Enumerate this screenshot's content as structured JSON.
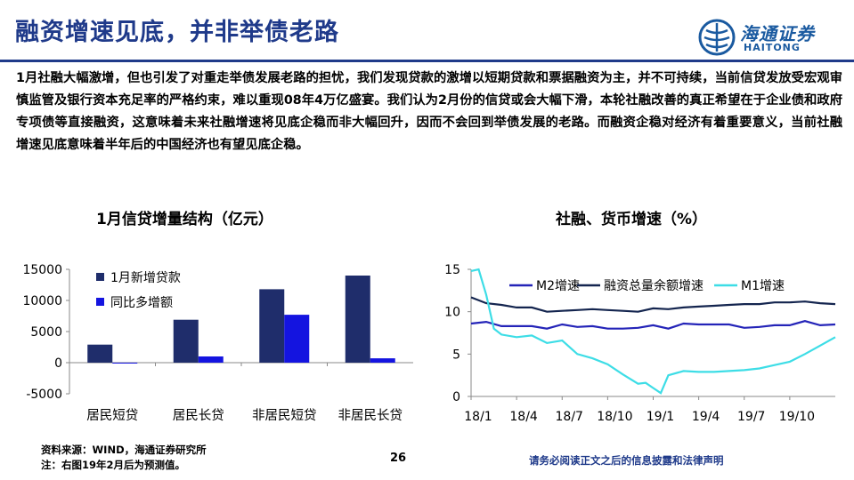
{
  "header": {
    "title": "融资增速见底，并非举债老路",
    "logo_cn": "海通证券",
    "logo_en": "HAITONG",
    "accent_color": "#1f3a8a"
  },
  "body_text": "1月社融大幅激增，但也引发了对重走举债发展老路的担忧，我们发现贷款的激增以短期贷款和票据融资为主，并不可持续，当前信贷发放受宏观审慎监管及银行资本充足率的严格约束，难以重现08年4万亿盛宴。我们认为2月份的信贷或会大幅下滑，本轮社融改善的真正希望在于企业债和政府专项债等直接融资，这意味着未来社融增速将见底企稳而非大幅回升，因而不会回到举债发展的老路。而融资企稳对经济有着重要意义，当前社融增速见底意味着半年后的中国经济也有望见底企稳。",
  "chart_data": [
    {
      "type": "bar",
      "title": "1月信贷增量结构（亿元）",
      "categories": [
        "居民短贷",
        "居民长贷",
        "非居民短贷",
        "非居民长贷"
      ],
      "series": [
        {
          "name": "1月新增贷款",
          "color": "#1f2d6b",
          "values": [
            2900,
            6900,
            11800,
            14000
          ]
        },
        {
          "name": "同比多增额",
          "color": "#1414e0",
          "values": [
            -100,
            1000,
            7700,
            700
          ]
        }
      ],
      "ylim": [
        -5000,
        15000
      ],
      "yticks": [
        "15000",
        "10000",
        "5000",
        "0",
        "-5000"
      ],
      "ytick_values": [
        15000,
        10000,
        5000,
        0,
        -5000
      ],
      "legend_position": "top-right",
      "grid": false
    },
    {
      "type": "line",
      "title": "社融、货币增速（%）",
      "x_tick_labels": [
        "18/1",
        "18/4",
        "18/7",
        "18/10",
        "19/1",
        "19/4",
        "19/7",
        "19/10"
      ],
      "x_tick_months": [
        0,
        3,
        6,
        9,
        12,
        15,
        18,
        21
      ],
      "x_range_months": [
        0,
        24
      ],
      "ylim": [
        0,
        15
      ],
      "yticks": [
        "15",
        "10",
        "5",
        "0"
      ],
      "ytick_values": [
        15,
        10,
        5,
        0
      ],
      "legend_position": "top",
      "grid": false,
      "series": [
        {
          "name": "M2增速",
          "color": "#2424b8",
          "points": [
            [
              0,
              8.6
            ],
            [
              1,
              8.8
            ],
            [
              2,
              8.3
            ],
            [
              3,
              8.3
            ],
            [
              4,
              8.3
            ],
            [
              5,
              8.0
            ],
            [
              6,
              8.5
            ],
            [
              7,
              8.2
            ],
            [
              8,
              8.3
            ],
            [
              9,
              8.0
            ],
            [
              10,
              8.0
            ],
            [
              11,
              8.1
            ],
            [
              12,
              8.4
            ],
            [
              13,
              8.0
            ],
            [
              14,
              8.6
            ],
            [
              15,
              8.5
            ],
            [
              16,
              8.5
            ],
            [
              17,
              8.5
            ],
            [
              18,
              8.1
            ],
            [
              19,
              8.2
            ],
            [
              20,
              8.4
            ],
            [
              21,
              8.4
            ],
            [
              22,
              8.9
            ],
            [
              23,
              8.4
            ],
            [
              24,
              8.5
            ]
          ]
        },
        {
          "name": "融资总量余额增速",
          "color": "#14254f",
          "points": [
            [
              0,
              11.7
            ],
            [
              1,
              11.0
            ],
            [
              2,
              10.8
            ],
            [
              3,
              10.5
            ],
            [
              4,
              10.5
            ],
            [
              5,
              10.0
            ],
            [
              6,
              10.1
            ],
            [
              7,
              10.2
            ],
            [
              8,
              10.3
            ],
            [
              9,
              10.2
            ],
            [
              10,
              10.1
            ],
            [
              11,
              10.0
            ],
            [
              12,
              10.4
            ],
            [
              13,
              10.3
            ],
            [
              14,
              10.5
            ],
            [
              15,
              10.6
            ],
            [
              16,
              10.7
            ],
            [
              17,
              10.8
            ],
            [
              18,
              10.9
            ],
            [
              19,
              10.9
            ],
            [
              20,
              11.1
            ],
            [
              21,
              11.1
            ],
            [
              22,
              11.2
            ],
            [
              23,
              11.0
            ],
            [
              24,
              10.9
            ]
          ]
        },
        {
          "name": "M1增速",
          "color": "#3ddde6",
          "points": [
            [
              0,
              14.8
            ],
            [
              0.5,
              15.0
            ],
            [
              1,
              12.0
            ],
            [
              1.5,
              8.0
            ],
            [
              2,
              7.3
            ],
            [
              3,
              7.0
            ],
            [
              4,
              7.2
            ],
            [
              5,
              6.3
            ],
            [
              6,
              6.6
            ],
            [
              7,
              5.0
            ],
            [
              8,
              4.5
            ],
            [
              9,
              3.8
            ],
            [
              10,
              2.6
            ],
            [
              11,
              1.5
            ],
            [
              11.5,
              1.6
            ],
            [
              12,
              1.0
            ],
            [
              12.5,
              0.4
            ],
            [
              13,
              2.5
            ],
            [
              14,
              3.0
            ],
            [
              15,
              2.9
            ],
            [
              16,
              2.9
            ],
            [
              17,
              3.0
            ],
            [
              18,
              3.1
            ],
            [
              19,
              3.3
            ],
            [
              20,
              3.7
            ],
            [
              21,
              4.1
            ],
            [
              22,
              5.0
            ],
            [
              23,
              6.0
            ],
            [
              24,
              7.0
            ]
          ]
        }
      ]
    }
  ],
  "footer": {
    "source_line": "资料来源：WIND，海通证券研究所",
    "note_line": "注：右图19年2月后为预测值。",
    "page_number": "26",
    "disclaimer": "请务必阅读正文之后的信息披露和法律声明"
  }
}
